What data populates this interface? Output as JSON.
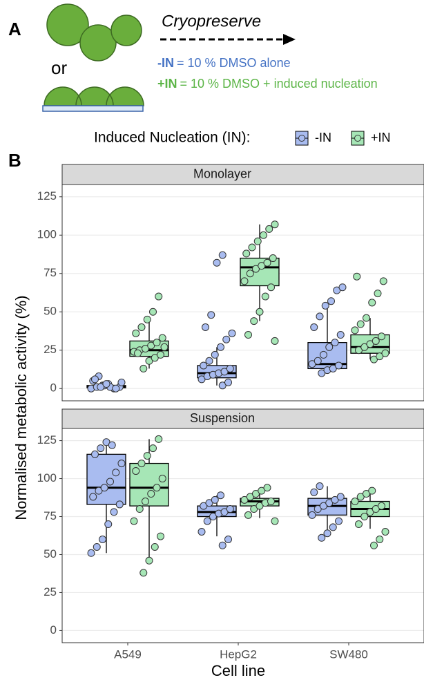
{
  "figure": {
    "panel_a_label": "A",
    "panel_b_label": "B",
    "or_text": "or",
    "action": "Cryopreserve",
    "conditions": [
      {
        "key": "-IN",
        "text": "= 10 % DMSO  alone",
        "color": "#4472c4"
      },
      {
        "key": "+IN",
        "text": "= 10 % DMSO + induced nucleation",
        "color": "#5cb547"
      }
    ],
    "legend_title": "Induced Nucleation (IN):",
    "ylabel": "Normalised metabolic activity (%)",
    "xlabel": "Cell line",
    "series": [
      {
        "name": "-IN",
        "color": "#a9bcf0"
      },
      {
        "name": "+IN",
        "color": "#a6e6b6"
      }
    ]
  },
  "chart_data": [
    {
      "type": "box",
      "title": "Monolayer",
      "categories": [
        "A549",
        "HepG2",
        "SW480"
      ],
      "ylim": [
        -8,
        133
      ],
      "yticks": [
        0,
        25,
        50,
        75,
        100,
        125
      ],
      "grid": true,
      "series": [
        {
          "stats": [
            {
              "min": 0,
              "q1": 0.5,
              "median": 1,
              "q3": 2,
              "max": 4
            },
            {
              "min": 2,
              "q1": 7,
              "median": 10,
              "q3": 15,
              "max": 27
            },
            {
              "min": 10,
              "q1": 13,
              "median": 16,
              "q3": 30,
              "max": 54
            }
          ],
          "points": [
            [
              0,
              1,
              2,
              3,
              0,
              1,
              5,
              8,
              2,
              1,
              0,
              4,
              6,
              1,
              3
            ],
            [
              2,
              4,
              6,
              8,
              9,
              10,
              11,
              13,
              15,
              18,
              22,
              27,
              32,
              36,
              40,
              48,
              82,
              87
            ],
            [
              10,
              12,
              13,
              15,
              16,
              18,
              22,
              27,
              30,
              35,
              40,
              47,
              54,
              57,
              64,
              66
            ]
          ]
        },
        {
          "stats": [
            {
              "min": 13,
              "q1": 21,
              "median": 25,
              "q3": 31,
              "max": 47
            },
            {
              "min": 44,
              "q1": 67,
              "median": 79,
              "q3": 85,
              "max": 107
            },
            {
              "min": 19,
              "q1": 23,
              "median": 27,
              "q3": 35,
              "max": 46
            }
          ],
          "points": [
            [
              13,
              18,
              20,
              22,
              24,
              25,
              26,
              28,
              30,
              33,
              36,
              40,
              45,
              50,
              60,
              27,
              23
            ],
            [
              31,
              35,
              44,
              50,
              60,
              66,
              70,
              75,
              78,
              80,
              82,
              85,
              88,
              92,
              96,
              100,
              104,
              107
            ],
            [
              19,
              21,
              23,
              25,
              27,
              29,
              31,
              34,
              38,
              42,
              46,
              56,
              62,
              70,
              73
            ]
          ]
        }
      ]
    },
    {
      "type": "box",
      "title": "Suspension",
      "categories": [
        "A549",
        "HepG2",
        "SW480"
      ],
      "ylim": [
        -8,
        133
      ],
      "yticks": [
        0,
        25,
        50,
        75,
        100,
        125
      ],
      "grid": true,
      "series": [
        {
          "stats": [
            {
              "min": 51,
              "q1": 83,
              "median": 94,
              "q3": 116,
              "max": 124
            },
            {
              "min": 62,
              "q1": 75,
              "median": 78,
              "q3": 82,
              "max": 89
            },
            {
              "min": 66,
              "q1": 76,
              "median": 82,
              "q3": 87,
              "max": 95
            }
          ],
          "points": [
            [
              51,
              55,
              60,
              70,
              78,
              83,
              88,
              92,
              94,
              98,
              104,
              110,
              116,
              120,
              124,
              122
            ],
            [
              56,
              60,
              65,
              72,
              75,
              77,
              78,
              80,
              82,
              84,
              86,
              89
            ],
            [
              61,
              64,
              68,
              72,
              76,
              80,
              82,
              84,
              86,
              88,
              91,
              95
            ]
          ]
        },
        {
          "stats": [
            {
              "min": 46,
              "q1": 82,
              "median": 94,
              "q3": 110,
              "max": 126
            },
            {
              "min": 74,
              "q1": 82,
              "median": 85,
              "q3": 87,
              "max": 94
            },
            {
              "min": 67,
              "q1": 75,
              "median": 80,
              "q3": 85,
              "max": 92
            }
          ],
          "points": [
            [
              38,
              46,
              55,
              62,
              72,
              80,
              85,
              90,
              94,
              100,
              105,
              110,
              115,
              120,
              126
            ],
            [
              72,
              76,
              80,
              82,
              84,
              85,
              86,
              88,
              90,
              92,
              94
            ],
            [
              56,
              60,
              65,
              70,
              75,
              78,
              80,
              82,
              85,
              88,
              90,
              92
            ]
          ]
        }
      ]
    }
  ]
}
